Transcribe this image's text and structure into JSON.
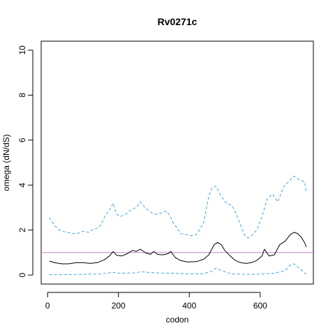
{
  "chart_data": {
    "type": "line",
    "title": "Rv0271c",
    "xlabel": "codon",
    "ylabel": "omega (dN/dS)",
    "xlim": [
      -18,
      750
    ],
    "ylim": [
      -0.4,
      10.4
    ],
    "x_ticks": [
      0,
      200,
      400,
      600
    ],
    "y_ticks": [
      0,
      2,
      4,
      6,
      8,
      10
    ],
    "x_tick_labels": [
      "0",
      "200",
      "400",
      "600"
    ],
    "y_tick_labels": [
      "0",
      "2",
      "4",
      "6",
      "8",
      "10"
    ],
    "reference_line": {
      "y": 1,
      "color": "#c77cc7"
    },
    "series": [
      {
        "role": "upper",
        "color": "#3da4e0",
        "dash": "dashed",
        "x": [
          5,
          20,
          30,
          40,
          55,
          70,
          85,
          100,
          115,
          130,
          145,
          155,
          165,
          175,
          185,
          195,
          205,
          220,
          235,
          250,
          262,
          275,
          290,
          305,
          320,
          335,
          345,
          355,
          365,
          375,
          390,
          405,
          420,
          440,
          455,
          465,
          475,
          490,
          505,
          520,
          530,
          540,
          555,
          565,
          575,
          590,
          605,
          620,
          635,
          650,
          665,
          680,
          695,
          710,
          725,
          730
        ],
        "y": [
          2.55,
          2.2,
          2.05,
          1.95,
          1.9,
          1.85,
          1.85,
          1.95,
          1.9,
          2.05,
          2.1,
          2.4,
          2.7,
          2.9,
          3.2,
          2.7,
          2.6,
          2.7,
          2.9,
          3.0,
          3.25,
          3.0,
          2.8,
          2.7,
          2.75,
          2.85,
          2.65,
          2.3,
          2.1,
          1.85,
          1.8,
          1.75,
          1.8,
          2.3,
          3.5,
          3.9,
          3.95,
          3.5,
          3.2,
          3.1,
          2.8,
          2.4,
          1.8,
          1.65,
          1.75,
          2.0,
          2.6,
          3.4,
          3.6,
          3.25,
          3.9,
          4.15,
          4.4,
          4.25,
          4.15,
          3.7
        ]
      },
      {
        "role": "mean",
        "color": "#000000",
        "dash": "solid",
        "x": [
          5,
          20,
          40,
          60,
          80,
          100,
          120,
          140,
          160,
          175,
          185,
          195,
          210,
          225,
          240,
          250,
          262,
          275,
          290,
          300,
          310,
          325,
          340,
          348,
          360,
          375,
          395,
          420,
          440,
          455,
          470,
          480,
          490,
          500,
          515,
          530,
          545,
          560,
          575,
          590,
          605,
          612,
          625,
          640,
          655,
          670,
          685,
          695,
          705,
          715,
          725,
          730
        ],
        "y": [
          0.62,
          0.55,
          0.5,
          0.5,
          0.55,
          0.55,
          0.52,
          0.55,
          0.68,
          0.85,
          1.05,
          0.88,
          0.85,
          0.95,
          1.1,
          1.05,
          1.15,
          1.0,
          0.92,
          1.05,
          0.92,
          0.9,
          0.95,
          1.05,
          0.78,
          0.65,
          0.58,
          0.6,
          0.7,
          0.9,
          1.35,
          1.45,
          1.35,
          1.1,
          0.85,
          0.65,
          0.55,
          0.52,
          0.55,
          0.65,
          0.85,
          1.15,
          0.85,
          0.9,
          1.35,
          1.5,
          1.8,
          1.9,
          1.85,
          1.7,
          1.45,
          1.25
        ]
      },
      {
        "role": "lower",
        "color": "#3da4e0",
        "dash": "dashed",
        "x": [
          5,
          50,
          100,
          150,
          185,
          200,
          250,
          262,
          300,
          350,
          400,
          440,
          460,
          475,
          490,
          520,
          560,
          600,
          640,
          670,
          685,
          695,
          710,
          725,
          730
        ],
        "y": [
          0.02,
          0.02,
          0.03,
          0.05,
          0.12,
          0.08,
          0.1,
          0.15,
          0.1,
          0.08,
          0.05,
          0.06,
          0.15,
          0.3,
          0.2,
          0.05,
          0.03,
          0.04,
          0.08,
          0.2,
          0.45,
          0.5,
          0.3,
          0.1,
          0.05
        ]
      }
    ]
  }
}
